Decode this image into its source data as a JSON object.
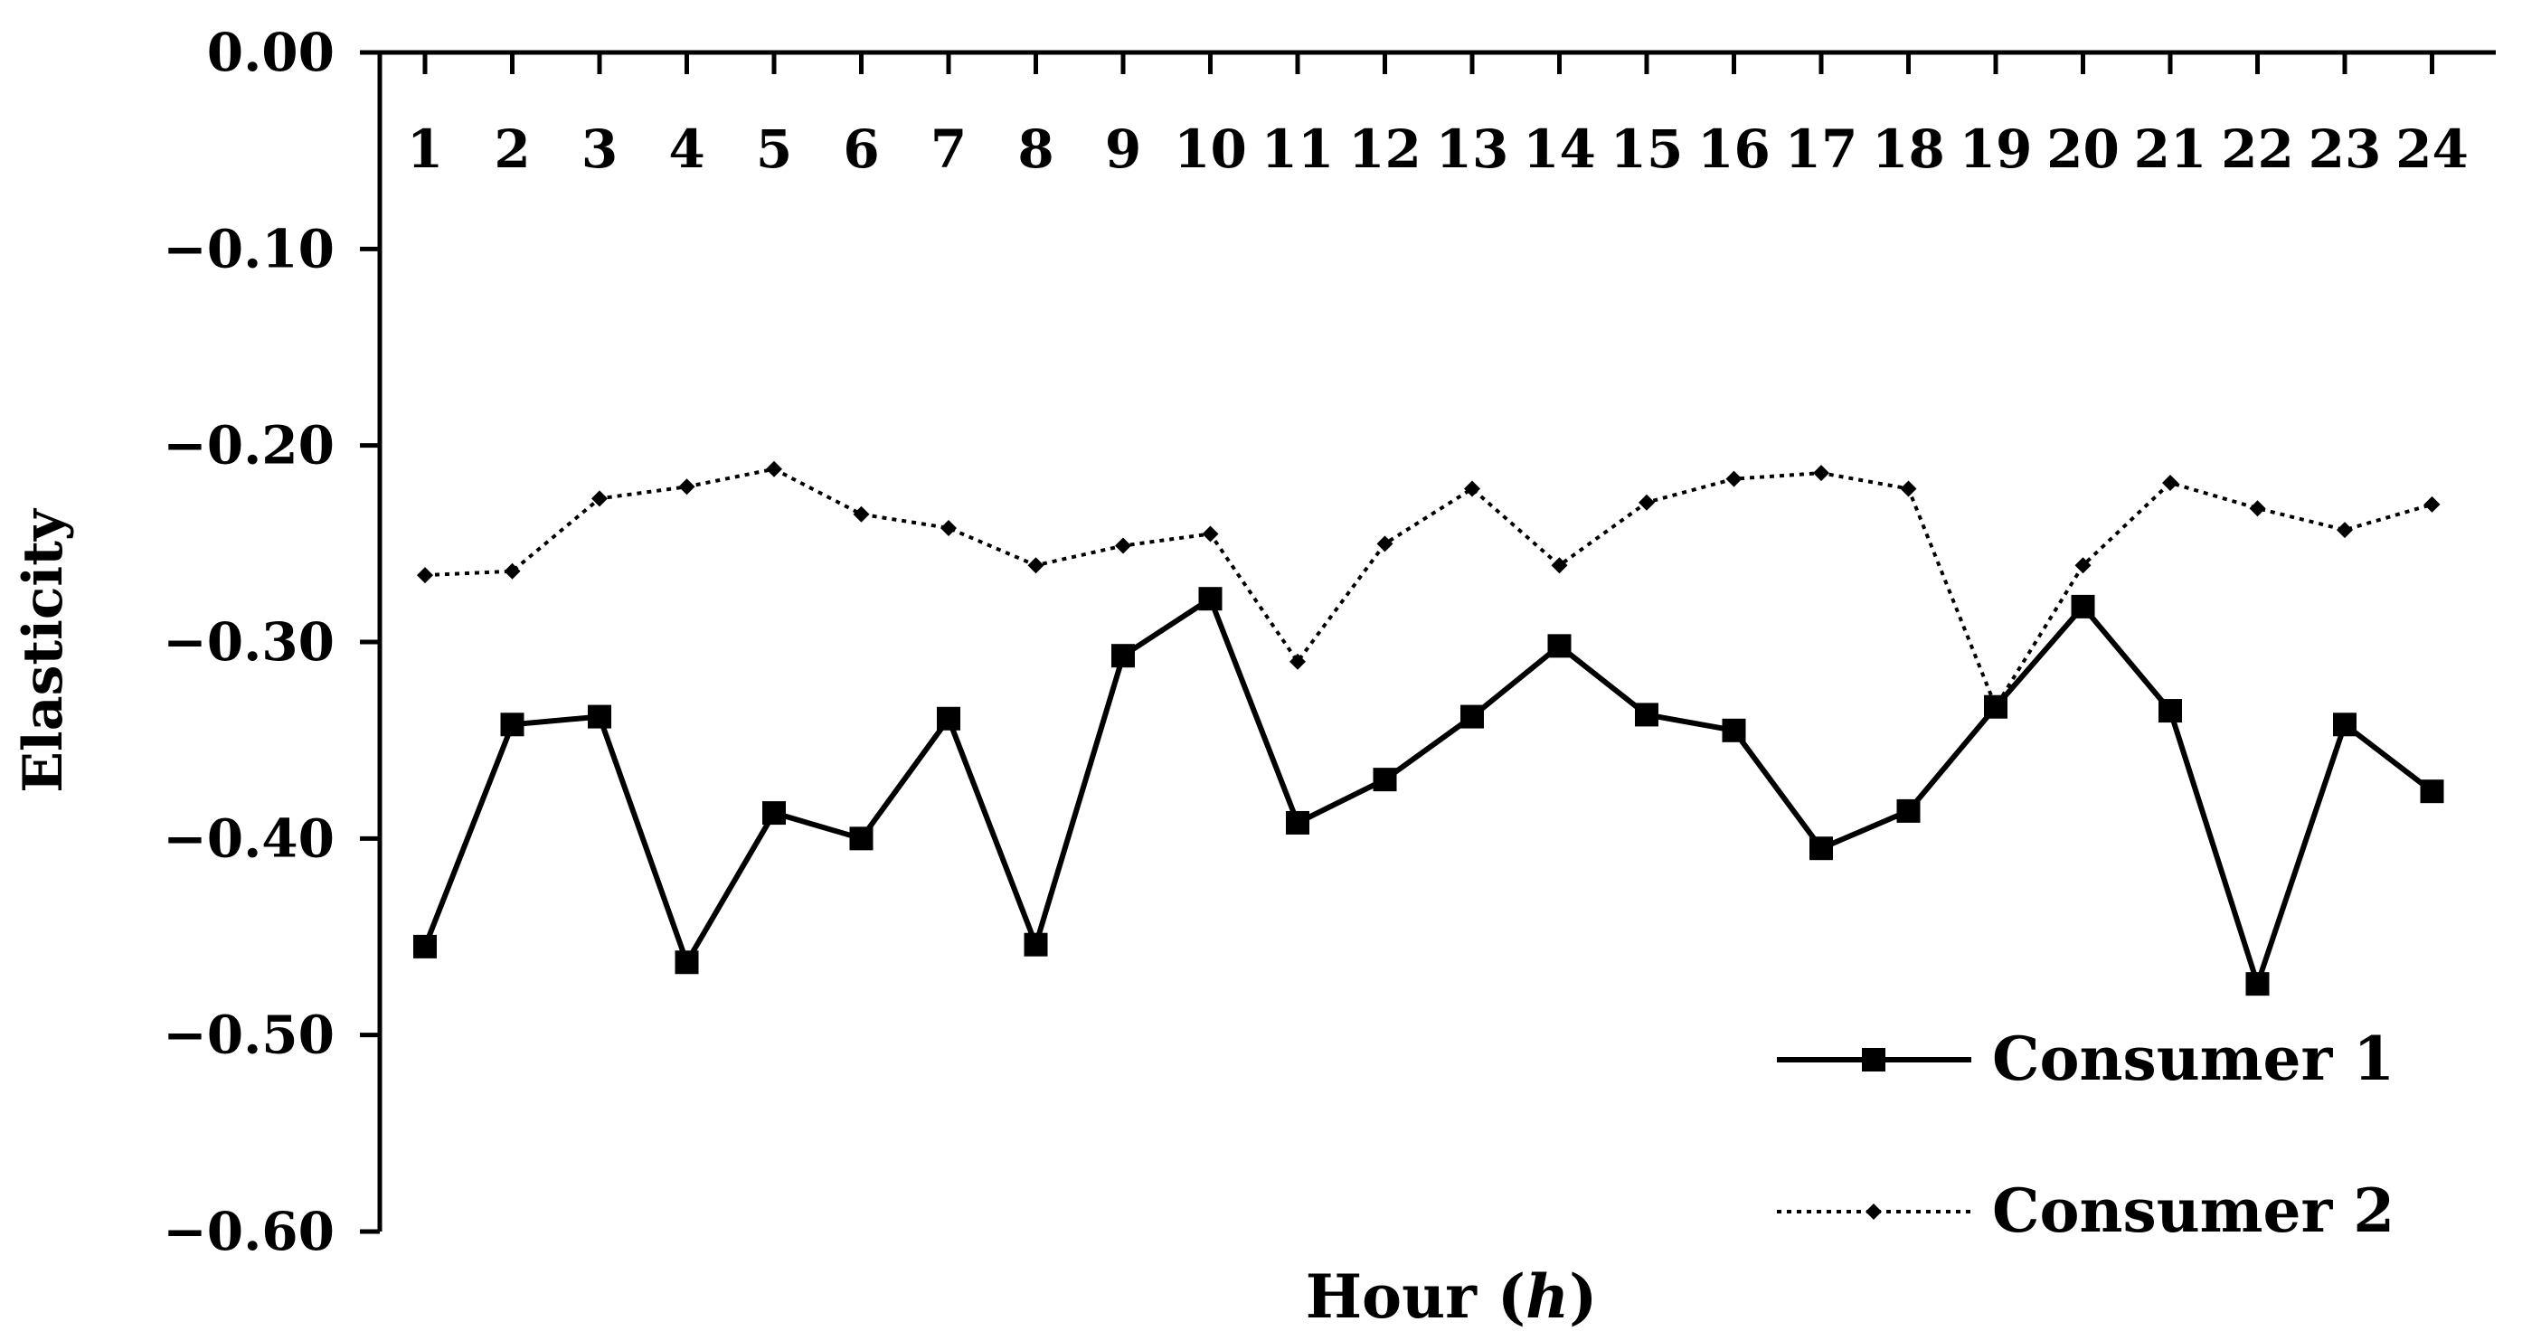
{
  "chart_data": {
    "type": "line",
    "xlabel": "Hour",
    "xlabel_var": "h",
    "ylabel": "Elasticity",
    "ylim": [
      -0.6,
      0.0
    ],
    "yticks": [
      "0.00",
      "−0.10",
      "−0.20",
      "−0.30",
      "−0.40",
      "−0.50",
      "−0.60"
    ],
    "ytick_values": [
      0.0,
      -0.1,
      -0.2,
      -0.3,
      -0.4,
      -0.5,
      -0.6
    ],
    "x": [
      1,
      2,
      3,
      4,
      5,
      6,
      7,
      8,
      9,
      10,
      11,
      12,
      13,
      14,
      15,
      16,
      17,
      18,
      19,
      20,
      21,
      22,
      23,
      24
    ],
    "xtick_labels": [
      "1",
      "2",
      "3",
      "4",
      "5",
      "6",
      "7",
      "8",
      "9",
      "10",
      "11",
      "12",
      "13",
      "14",
      "15",
      "16",
      "17",
      "18",
      "19",
      "20",
      "21",
      "22",
      "23",
      "24"
    ],
    "legend_position": "bottom-right",
    "series": [
      {
        "name": "Consumer 1",
        "style": "solid",
        "marker": "square",
        "color": "#000000",
        "values": [
          -0.455,
          -0.342,
          -0.338,
          -0.463,
          -0.387,
          -0.4,
          -0.339,
          -0.454,
          -0.307,
          -0.278,
          -0.392,
          -0.37,
          -0.338,
          -0.302,
          -0.337,
          -0.345,
          -0.405,
          -0.386,
          -0.333,
          -0.282,
          -0.335,
          -0.474,
          -0.342,
          -0.376
        ]
      },
      {
        "name": "Consumer 2",
        "style": "dotted",
        "marker": "diamond",
        "color": "#000000",
        "values": [
          -0.266,
          -0.264,
          -0.227,
          -0.221,
          -0.212,
          -0.235,
          -0.242,
          -0.261,
          -0.251,
          -0.245,
          -0.31,
          -0.25,
          -0.222,
          -0.261,
          -0.229,
          -0.217,
          -0.214,
          -0.222,
          -0.333,
          -0.261,
          -0.219,
          -0.232,
          -0.243,
          -0.23
        ]
      }
    ]
  }
}
